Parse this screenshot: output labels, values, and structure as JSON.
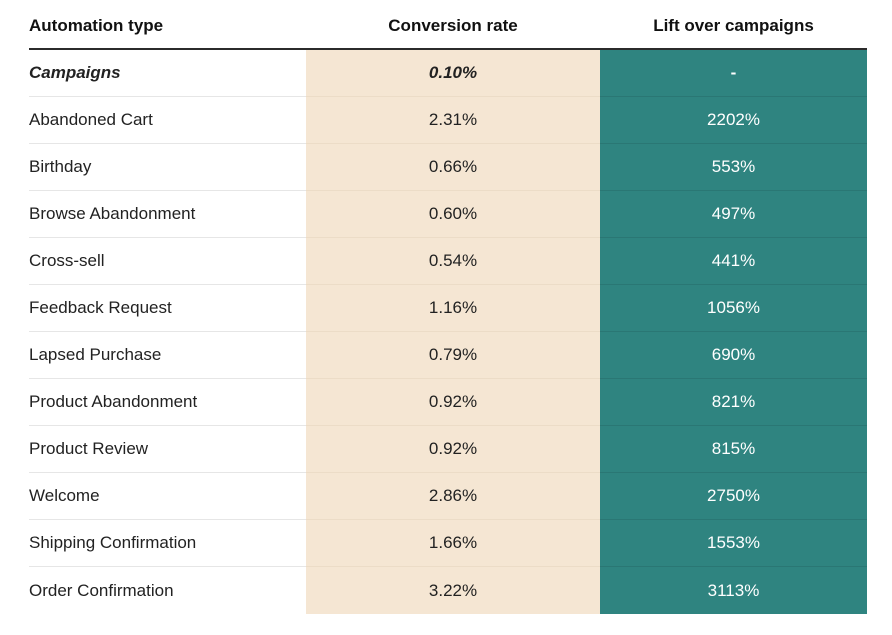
{
  "chart_data": {
    "type": "table",
    "columns": [
      "Automation type",
      "Conversion rate",
      "Lift over campaigns"
    ],
    "rows": [
      {
        "type": "Campaigns",
        "rate": "0.10%",
        "lift": "-"
      },
      {
        "type": "Abandoned Cart",
        "rate": "2.31%",
        "lift": "2202%"
      },
      {
        "type": "Birthday",
        "rate": "0.66%",
        "lift": "553%"
      },
      {
        "type": "Browse Abandonment",
        "rate": "0.60%",
        "lift": "497%"
      },
      {
        "type": "Cross-sell",
        "rate": "0.54%",
        "lift": "441%"
      },
      {
        "type": "Feedback Request",
        "rate": "1.16%",
        "lift": "1056%"
      },
      {
        "type": "Lapsed Purchase",
        "rate": "0.79%",
        "lift": "690%"
      },
      {
        "type": "Product Abandonment",
        "rate": "0.92%",
        "lift": "821%"
      },
      {
        "type": "Product Review",
        "rate": "0.92%",
        "lift": "815%"
      },
      {
        "type": "Welcome",
        "rate": "2.86%",
        "lift": "2750%"
      },
      {
        "type": "Shipping Confirmation",
        "rate": "1.66%",
        "lift": "1553%"
      },
      {
        "type": "Order Confirmation",
        "rate": "3.22%",
        "lift": "3113%"
      }
    ]
  },
  "colors": {
    "rate_column_bg": "#f5e6d3",
    "lift_column_bg": "#2f8480",
    "lift_text": "#ffffff"
  }
}
